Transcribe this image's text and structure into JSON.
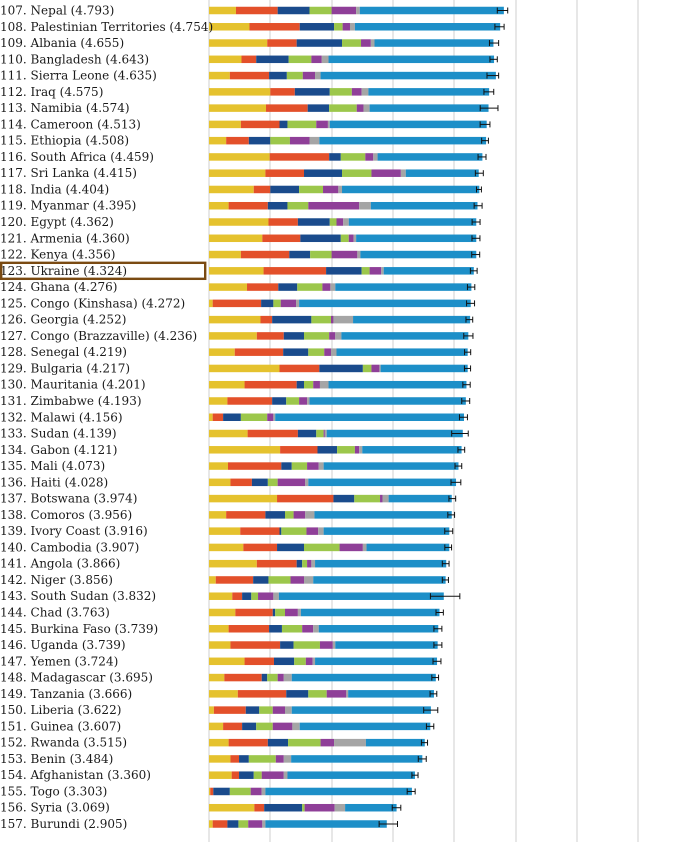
{
  "chart_data": {
    "type": "bar",
    "orientation": "horizontal",
    "stacked": true,
    "grid": true,
    "component_colors": [
      "#e5c22e",
      "#e3502a",
      "#1a4b8c",
      "#9cc74b",
      "#8f3f98",
      "#a5a5a5",
      "#1d8fc8"
    ],
    "highlight_rank": 123,
    "rows": [
      {
        "label": "107. Nepal (4.793)",
        "rank": 107,
        "score": 4.793,
        "segments": [
          0.44,
          0.68,
          0.52,
          0.36,
          0.4,
          0.06,
          2.35
        ],
        "ci": [
          0.09,
          0.08
        ]
      },
      {
        "label": "108. Palestinian Territories (4.754)",
        "rank": 108,
        "score": 4.754,
        "segments": [
          0.66,
          0.82,
          0.56,
          0.14,
          0.12,
          0.08,
          2.37
        ],
        "ci": [
          0.09,
          0.06
        ]
      },
      {
        "label": "109. Albania (4.655)",
        "rank": 109,
        "score": 4.655,
        "segments": [
          0.95,
          0.48,
          0.74,
          0.31,
          0.16,
          0.06,
          1.94
        ],
        "ci": [
          0.08,
          0.07
        ]
      },
      {
        "label": "110. Bangladesh (4.643)",
        "rank": 110,
        "score": 4.643,
        "segments": [
          0.53,
          0.24,
          0.53,
          0.37,
          0.17,
          0.11,
          2.7
        ],
        "ci": [
          0.06,
          0.06
        ]
      },
      {
        "label": "111. Sierra Leone (4.635)",
        "rank": 111,
        "score": 4.635,
        "segments": [
          0.34,
          0.64,
          0.29,
          0.26,
          0.2,
          0.09,
          2.86
        ],
        "ci": [
          0.1,
          0.09
        ]
      },
      {
        "label": "112. Iraq (4.575)",
        "rank": 112,
        "score": 4.575,
        "segments": [
          1.0,
          0.4,
          0.57,
          0.36,
          0.16,
          0.11,
          1.97
        ],
        "ci": [
          0.09,
          0.07
        ]
      },
      {
        "label": "113. Namibia (4.574)",
        "rank": 113,
        "score": 4.574,
        "segments": [
          0.93,
          0.68,
          0.35,
          0.45,
          0.11,
          0.1,
          1.94
        ],
        "ci": [
          0.15,
          0.14
        ]
      },
      {
        "label": "114. Cameroon (4.513)",
        "rank": 114,
        "score": 4.513,
        "segments": [
          0.52,
          0.63,
          0.13,
          0.47,
          0.19,
          0.03,
          2.56
        ],
        "ci": [
          0.09,
          0.07
        ]
      },
      {
        "label": "115. Ethiopia (4.508)",
        "rank": 115,
        "score": 4.508,
        "segments": [
          0.28,
          0.37,
          0.35,
          0.32,
          0.32,
          0.16,
          2.72
        ],
        "ci": [
          0.06,
          0.05
        ]
      },
      {
        "label": "116. South Africa (4.459)",
        "rank": 116,
        "score": 4.459,
        "segments": [
          0.99,
          0.97,
          0.19,
          0.4,
          0.13,
          0.07,
          1.71
        ],
        "ci": [
          0.07,
          0.06
        ]
      },
      {
        "label": "117. Sri Lanka (4.415)",
        "rank": 117,
        "score": 4.415,
        "segments": [
          0.92,
          0.63,
          0.62,
          0.48,
          0.48,
          0.08,
          1.19
        ],
        "ci": [
          0.07,
          0.06
        ]
      },
      {
        "label": "118. India (4.404)",
        "rank": 118,
        "score": 4.404,
        "segments": [
          0.73,
          0.27,
          0.47,
          0.39,
          0.25,
          0.06,
          2.24
        ],
        "ci": [
          0.04,
          0.04
        ]
      },
      {
        "label": "119. Myanmar (4.395)",
        "rank": 119,
        "score": 4.395,
        "segments": [
          0.32,
          0.64,
          0.32,
          0.34,
          0.83,
          0.19,
          1.74
        ],
        "ci": [
          0.07,
          0.06
        ]
      },
      {
        "label": "120. Egypt (4.362)",
        "rank": 120,
        "score": 4.362,
        "segments": [
          0.97,
          0.48,
          0.52,
          0.11,
          0.11,
          0.09,
          2.08
        ],
        "ci": [
          0.07,
          0.06
        ]
      },
      {
        "label": "121. Armenia (4.360)",
        "rank": 121,
        "score": 4.36,
        "segments": [
          0.87,
          0.62,
          0.66,
          0.13,
          0.08,
          0.04,
          1.96
        ],
        "ci": [
          0.07,
          0.06
        ]
      },
      {
        "label": "122. Kenya (4.356)",
        "rank": 122,
        "score": 4.356,
        "segments": [
          0.52,
          0.79,
          0.34,
          0.35,
          0.42,
          0.05,
          1.89
        ],
        "ci": [
          0.07,
          0.06
        ]
      },
      {
        "label": "123. Ukraine (4.324)",
        "rank": 123,
        "score": 4.324,
        "segments": [
          0.89,
          1.02,
          0.58,
          0.13,
          0.19,
          0.04,
          1.47
        ],
        "ci": [
          0.06,
          0.05
        ]
      },
      {
        "label": "124. Ghana (4.276)",
        "rank": 124,
        "score": 4.276,
        "segments": [
          0.62,
          0.51,
          0.31,
          0.41,
          0.13,
          0.08,
          2.22
        ],
        "ci": [
          0.06,
          0.06
        ]
      },
      {
        "label": "125. Congo (Kinshasa) (4.272)",
        "rank": 125,
        "score": 4.272,
        "segments": [
          0.06,
          0.79,
          0.2,
          0.12,
          0.25,
          0.05,
          2.8
        ],
        "ci": [
          0.07,
          0.06
        ]
      },
      {
        "label": "126. Georgia (4.252)",
        "rank": 126,
        "score": 4.252,
        "segments": [
          0.84,
          0.19,
          0.64,
          0.32,
          0.04,
          0.32,
          1.91
        ],
        "ci": [
          0.06,
          0.05
        ]
      },
      {
        "label": "127. Congo (Brazzaville) (4.236)",
        "rank": 127,
        "score": 4.236,
        "segments": [
          0.78,
          0.44,
          0.33,
          0.41,
          0.1,
          0.1,
          2.07
        ],
        "ci": [
          0.08,
          0.07
        ]
      },
      {
        "label": "128. Senegal (4.219)",
        "rank": 128,
        "score": 4.219,
        "segments": [
          0.42,
          0.79,
          0.41,
          0.26,
          0.11,
          0.09,
          2.14
        ],
        "ci": [
          0.05,
          0.05
        ]
      },
      {
        "label": "129. Bulgaria (4.217)",
        "rank": 129,
        "score": 4.217,
        "segments": [
          1.15,
          0.65,
          0.71,
          0.14,
          0.13,
          0.02,
          1.42
        ],
        "ci": [
          0.05,
          0.05
        ]
      },
      {
        "label": "130. Mauritania (4.201)",
        "rank": 130,
        "score": 4.201,
        "segments": [
          0.58,
          0.85,
          0.12,
          0.15,
          0.11,
          0.14,
          2.25
        ],
        "ci": [
          0.06,
          0.06
        ]
      },
      {
        "label": "131. Zimbabwe (4.193)",
        "rank": 131,
        "score": 4.193,
        "segments": [
          0.3,
          0.73,
          0.23,
          0.21,
          0.13,
          0.04,
          2.55
        ],
        "ci": [
          0.07,
          0.06
        ]
      },
      {
        "label": "132. Malawi (4.156)",
        "rank": 132,
        "score": 4.156,
        "segments": [
          0.06,
          0.17,
          0.29,
          0.43,
          0.1,
          0.03,
          3.08
        ],
        "ci": [
          0.07,
          0.06
        ]
      },
      {
        "label": "133. Sudan (4.139)",
        "rank": 133,
        "score": 4.139,
        "segments": [
          0.63,
          0.82,
          0.3,
          0.12,
          0.02,
          0.03,
          2.22
        ],
        "ci": [
          0.18,
          0.09
        ]
      },
      {
        "label": "134. Gabon (4.121)",
        "rank": 134,
        "score": 4.121,
        "segments": [
          1.16,
          0.61,
          0.32,
          0.29,
          0.07,
          0.05,
          1.62
        ],
        "ci": [
          0.06,
          0.05
        ]
      },
      {
        "label": "135. Mali (4.073)",
        "rank": 135,
        "score": 4.073,
        "segments": [
          0.31,
          0.87,
          0.17,
          0.25,
          0.19,
          0.08,
          2.2
        ],
        "ci": [
          0.06,
          0.05
        ]
      },
      {
        "label": "136. Haiti (4.028)",
        "rank": 136,
        "score": 4.028,
        "segments": [
          0.35,
          0.35,
          0.26,
          0.16,
          0.45,
          0.05,
          2.41
        ],
        "ci": [
          0.08,
          0.08
        ]
      },
      {
        "label": "137. Botswana (3.974)",
        "rank": 137,
        "score": 3.974,
        "segments": [
          1.11,
          0.92,
          0.34,
          0.42,
          0.04,
          0.1,
          1.03
        ],
        "ci": [
          0.06,
          0.05
        ]
      },
      {
        "label": "138. Comoros (3.956)",
        "rank": 138,
        "score": 3.956,
        "segments": [
          0.28,
          0.64,
          0.32,
          0.14,
          0.19,
          0.15,
          2.24
        ],
        "ci": [
          0.06,
          0.05
        ]
      },
      {
        "label": "139. Ivory Coast (3.916)",
        "rank": 139,
        "score": 3.916,
        "segments": [
          0.51,
          0.64,
          0.03,
          0.41,
          0.19,
          0.09,
          2.05
        ],
        "ci": [
          0.07,
          0.06
        ]
      },
      {
        "label": "140. Cambodia (3.907)",
        "rank": 140,
        "score": 3.907,
        "segments": [
          0.56,
          0.55,
          0.44,
          0.58,
          0.38,
          0.06,
          1.35
        ],
        "ci": [
          0.06,
          0.05
        ]
      },
      {
        "label": "141. Angola (3.866)",
        "rank": 141,
        "score": 3.866,
        "segments": [
          0.78,
          0.65,
          0.09,
          0.08,
          0.07,
          0.06,
          2.14
        ],
        "ci": [
          0.06,
          0.05
        ]
      },
      {
        "label": "142. Niger (3.856)",
        "rank": 142,
        "score": 3.856,
        "segments": [
          0.11,
          0.61,
          0.25,
          0.36,
          0.22,
          0.15,
          2.16
        ],
        "ci": [
          0.05,
          0.05
        ]
      },
      {
        "label": "143. South Sudan (3.832)",
        "rank": 143,
        "score": 3.832,
        "segments": [
          0.38,
          0.16,
          0.15,
          0.11,
          0.25,
          0.09,
          2.69
        ],
        "ci": [
          0.22,
          0.26
        ]
      },
      {
        "label": "144. Chad (3.763)",
        "rank": 144,
        "score": 3.763,
        "segments": [
          0.43,
          0.61,
          0.04,
          0.16,
          0.21,
          0.05,
          2.26
        ],
        "ci": [
          0.06,
          0.06
        ]
      },
      {
        "label": "145. Burkina Faso (3.739)",
        "rank": 145,
        "score": 3.739,
        "segments": [
          0.32,
          0.66,
          0.21,
          0.33,
          0.18,
          0.09,
          1.95
        ],
        "ci": [
          0.07,
          0.06
        ]
      },
      {
        "label": "146. Uganda (3.739)",
        "rank": 146,
        "score": 3.739,
        "segments": [
          0.35,
          0.81,
          0.22,
          0.43,
          0.21,
          0.04,
          1.67
        ],
        "ci": [
          0.07,
          0.06
        ]
      },
      {
        "label": "147. Yemen (3.724)",
        "rank": 147,
        "score": 3.724,
        "segments": [
          0.58,
          0.48,
          0.33,
          0.19,
          0.11,
          0.04,
          1.99
        ],
        "ci": [
          0.07,
          0.06
        ]
      },
      {
        "label": "148. Madagascar (3.695)",
        "rank": 148,
        "score": 3.695,
        "segments": [
          0.25,
          0.61,
          0.09,
          0.17,
          0.1,
          0.13,
          2.35
        ],
        "ci": [
          0.06,
          0.05
        ]
      },
      {
        "label": "149. Tanzania (3.666)",
        "rank": 149,
        "score": 3.666,
        "segments": [
          0.47,
          0.79,
          0.36,
          0.3,
          0.32,
          0.03,
          1.4
        ],
        "ci": [
          0.06,
          0.05
        ]
      },
      {
        "label": "150. Liberia (3.622)",
        "rank": 150,
        "score": 3.622,
        "segments": [
          0.08,
          0.52,
          0.22,
          0.22,
          0.2,
          0.11,
          2.27
        ],
        "ci": [
          0.12,
          0.11
        ]
      },
      {
        "label": "151. Guinea (3.607)",
        "rank": 151,
        "score": 3.607,
        "segments": [
          0.23,
          0.31,
          0.23,
          0.27,
          0.32,
          0.12,
          2.13
        ],
        "ci": [
          0.06,
          0.06
        ]
      },
      {
        "label": "152. Rwanda (3.515)",
        "rank": 152,
        "score": 3.515,
        "segments": [
          0.32,
          0.64,
          0.33,
          0.53,
          0.22,
          0.52,
          0.96
        ],
        "ci": [
          0.05,
          0.05
        ]
      },
      {
        "label": "153. Benin (3.484)",
        "rank": 153,
        "score": 3.484,
        "segments": [
          0.35,
          0.14,
          0.16,
          0.44,
          0.13,
          0.12,
          2.14
        ],
        "ci": [
          0.07,
          0.06
        ]
      },
      {
        "label": "154. Afghanistan (3.360)",
        "rank": 154,
        "score": 3.36,
        "segments": [
          0.37,
          0.12,
          0.24,
          0.13,
          0.36,
          0.06,
          2.08
        ],
        "ci": [
          0.05,
          0.05
        ]
      },
      {
        "label": "155. Togo (3.303)",
        "rank": 155,
        "score": 3.303,
        "segments": [
          0.02,
          0.05,
          0.27,
          0.34,
          0.18,
          0.06,
          2.39
        ],
        "ci": [
          0.07,
          0.06
        ]
      },
      {
        "label": "156. Syria (3.069)",
        "rank": 156,
        "score": 3.069,
        "segments": [
          0.74,
          0.16,
          0.62,
          0.04,
          0.49,
          0.17,
          0.84
        ],
        "ci": [
          0.08,
          0.06
        ]
      },
      {
        "label": "157. Burundi (2.905)",
        "rank": 157,
        "score": 2.905,
        "segments": [
          0.06,
          0.24,
          0.18,
          0.16,
          0.23,
          0.05,
          1.98
        ],
        "ci": [
          0.13,
          0.17
        ]
      }
    ]
  }
}
